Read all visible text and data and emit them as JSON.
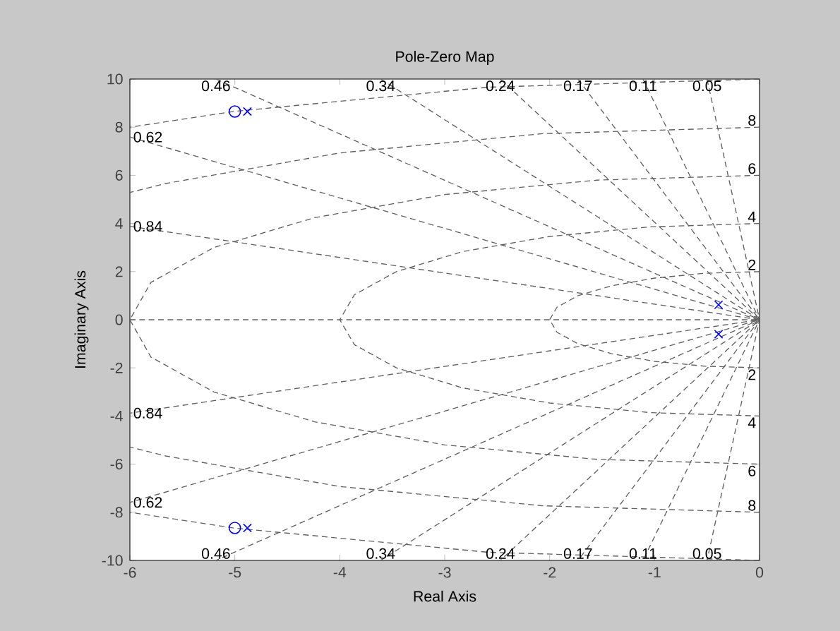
{
  "chart_data": {
    "type": "scatter",
    "title": "Pole-Zero Map",
    "xlabel": "Real Axis",
    "ylabel": "Imaginary Axis",
    "xlim": [
      -6,
      0
    ],
    "ylim": [
      -10,
      10
    ],
    "xticks": [
      -6,
      -5,
      -4,
      -3,
      -2,
      -1,
      0
    ],
    "yticks": [
      -10,
      -8,
      -6,
      -4,
      -2,
      0,
      2,
      4,
      6,
      8,
      10
    ],
    "grid": false,
    "series": [
      {
        "type": "line",
        "line_style": "dashed",
        "color": "#606060",
        "x": [
          -6,
          0
        ],
        "values": [
          0,
          0
        ]
      },
      {
        "type": "line",
        "line_style": "dashed",
        "color": "#606060",
        "name": "0.46",
        "x": [
          -5.18,
          0,
          -5.18
        ],
        "values": [
          10,
          0,
          -10
        ]
      },
      {
        "type": "line",
        "line_style": "dashed",
        "color": "#606060",
        "name": "0.34",
        "x": [
          -3.61,
          0,
          -3.61
        ],
        "values": [
          10,
          0,
          -10
        ]
      },
      {
        "type": "line",
        "line_style": "dashed",
        "color": "#606060",
        "name": "0.24",
        "x": [
          -2.47,
          0,
          -2.47
        ],
        "values": [
          10,
          0,
          -10
        ]
      },
      {
        "type": "line",
        "line_style": "dashed",
        "color": "#606060",
        "name": "0.17",
        "x": [
          -1.73,
          0,
          -1.73
        ],
        "values": [
          10,
          0,
          -10
        ]
      },
      {
        "type": "line",
        "line_style": "dashed",
        "color": "#606060",
        "name": "0.11",
        "x": [
          -1.11,
          0,
          -1.11
        ],
        "values": [
          10,
          0,
          -10
        ]
      },
      {
        "type": "line",
        "line_style": "dashed",
        "color": "#606060",
        "name": "0.05",
        "x": [
          -0.5,
          0,
          -0.5
        ],
        "values": [
          10,
          0,
          -10
        ]
      },
      {
        "type": "line",
        "line_style": "dashed",
        "color": "#606060",
        "name": "0.62",
        "x": [
          -6,
          0,
          -6
        ],
        "values": [
          7.59,
          0,
          -7.59
        ]
      },
      {
        "type": "line",
        "line_style": "dashed",
        "color": "#606060",
        "name": "0.84",
        "x": [
          -6,
          0,
          -6
        ],
        "values": [
          3.88,
          0,
          -3.88
        ]
      },
      {
        "type": "line",
        "line_style": "dashed",
        "color": "#606060",
        "name": "2",
        "x": [
          0,
          -0.52,
          -1,
          -1.41,
          -1.73,
          -1.93,
          -2,
          -1.93,
          -1.73,
          -1.41,
          -1,
          -0.52,
          0
        ],
        "values": [
          2,
          1.93,
          1.73,
          1.41,
          1,
          0.52,
          0,
          -0.52,
          -1,
          -1.41,
          -1.73,
          -1.93,
          -2
        ]
      },
      {
        "type": "line",
        "line_style": "dashed",
        "color": "#606060",
        "name": "4",
        "x": [
          0,
          -1.04,
          -2,
          -2.83,
          -3.46,
          -3.86,
          -4,
          -3.86,
          -3.46,
          -2.83,
          -2,
          -1.04,
          0
        ],
        "values": [
          4,
          3.86,
          3.46,
          2.83,
          2,
          1.04,
          0,
          -1.04,
          -2,
          -2.83,
          -3.46,
          -3.86,
          -4
        ]
      },
      {
        "type": "line",
        "line_style": "dashed",
        "color": "#606060",
        "name": "6",
        "x": [
          0,
          -1.55,
          -3,
          -4.24,
          -5.2,
          -5.8,
          -6,
          -5.8,
          -5.2,
          -4.24,
          -3,
          -1.55,
          0
        ],
        "values": [
          6,
          5.8,
          5.2,
          4.24,
          3,
          1.55,
          0,
          -1.55,
          -3,
          -4.24,
          -5.2,
          -5.8,
          -6
        ]
      },
      {
        "type": "line",
        "line_style": "dashed",
        "color": "#606060",
        "name": "8",
        "x": [
          0,
          -2.07,
          -4,
          -5.66,
          -6
        ],
        "values": [
          8,
          7.73,
          6.93,
          5.66,
          5.29
        ]
      },
      {
        "type": "line",
        "line_style": "dashed",
        "color": "#606060",
        "name": "8",
        "x": [
          0,
          -2.07,
          -4,
          -5.66,
          -6
        ],
        "values": [
          -8,
          -7.73,
          -6.93,
          -5.66,
          -5.29
        ]
      },
      {
        "type": "line",
        "line_style": "dashed",
        "color": "#606060",
        "x": [
          0,
          -2.59,
          -5,
          -6
        ],
        "values": [
          10,
          9.66,
          8.66,
          8
        ]
      },
      {
        "type": "line",
        "line_style": "dashed",
        "color": "#606060",
        "x": [
          0,
          -2.59,
          -5,
          -6
        ],
        "values": [
          -10,
          -9.66,
          -8.66,
          -8
        ]
      },
      {
        "marker": "cross",
        "color": "#0000ff",
        "x": [
          -4.88,
          -4.88,
          -0.39,
          -0.39
        ],
        "values": [
          8.65,
          -8.65,
          0.62,
          -0.6
        ]
      },
      {
        "marker": "circle",
        "color": "#0000ff",
        "x": [
          -5.0,
          -5.0
        ],
        "values": [
          8.65,
          -8.65
        ]
      }
    ]
  }
}
